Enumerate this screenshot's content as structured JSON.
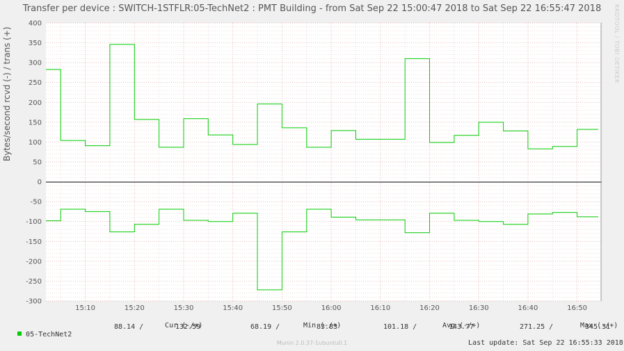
{
  "title": "Transfer per device : SWITCH-1STFLR:05-TechNet2 : PMT Building - from Sat Sep 22 15:00:47 2018 to Sat Sep 22 16:55:47 2018",
  "watermark": "RRDTOOL / TOBI OETIKER",
  "footer": "Munin 2.0.37-1ubuntu0.1",
  "colors": {
    "background": "#f0f0f0",
    "plot_bg": "#ffffff",
    "series": "#00cc00",
    "zero_line": "#000000",
    "grid_minor": "#e6b8b8",
    "grid_major": "#d07070"
  },
  "legend": {
    "headers": [
      "Cur (-/+)",
      "Min (-/+)",
      "Avg (-/+)",
      "Max (-/+)"
    ],
    "series_name": "05-TechNet2",
    "cur": [
      "88.14 /",
      "132.59"
    ],
    "min": [
      "68.19 /",
      "83.83"
    ],
    "avg": [
      "101.18 /",
      "143.77"
    ],
    "max": [
      "271.25 /",
      "345.31"
    ],
    "last_update": "Last update: Sat Sep 22 16:55:33 2018"
  },
  "chart_data": {
    "type": "line",
    "title": "Transfer per device : SWITCH-1STFLR:05-TechNet2 : PMT Building - from Sat Sep 22 15:00:47 2018 to Sat Sep 22 16:55:47 2018",
    "xlabel": "",
    "ylabel": "Bytes/second rcvd (-) / trans (+)",
    "ylim": [
      -300,
      400
    ],
    "xlim": [
      "15:02",
      "16:55"
    ],
    "grid": true,
    "legend_position": "bottom",
    "x_ticks": [
      "15:10",
      "15:20",
      "15:30",
      "15:40",
      "15:50",
      "16:00",
      "16:10",
      "16:20",
      "16:30",
      "16:40",
      "16:50"
    ],
    "y_ticks": [
      400,
      350,
      300,
      250,
      200,
      150,
      100,
      50,
      0,
      -50,
      -100,
      -150,
      -200,
      -250,
      -300
    ],
    "x": [
      "15:05",
      "15:10",
      "15:15",
      "15:20",
      "15:25",
      "15:30",
      "15:35",
      "15:40",
      "15:45",
      "15:50",
      "15:55",
      "16:00",
      "16:05",
      "16:10",
      "16:15",
      "16:20",
      "16:25",
      "16:30",
      "16:35",
      "16:40",
      "16:45",
      "16:50",
      "16:55"
    ],
    "series": [
      {
        "name": "05-TechNet2",
        "values": [
          283,
          104,
          91,
          346,
          157,
          87,
          159,
          118,
          94,
          196,
          136,
          87,
          129,
          107,
          107,
          310,
          99,
          117,
          150,
          128,
          83,
          89,
          132
        ]
      },
      {
        "name": "05-TechNet2",
        "values": [
          -98,
          -69,
          -75,
          -126,
          -107,
          -69,
          -97,
          -100,
          -79,
          -272,
          -126,
          -69,
          -89,
          -96,
          -96,
          -128,
          -79,
          -97,
          -100,
          -107,
          -81,
          -77,
          -88
        ]
      }
    ]
  }
}
